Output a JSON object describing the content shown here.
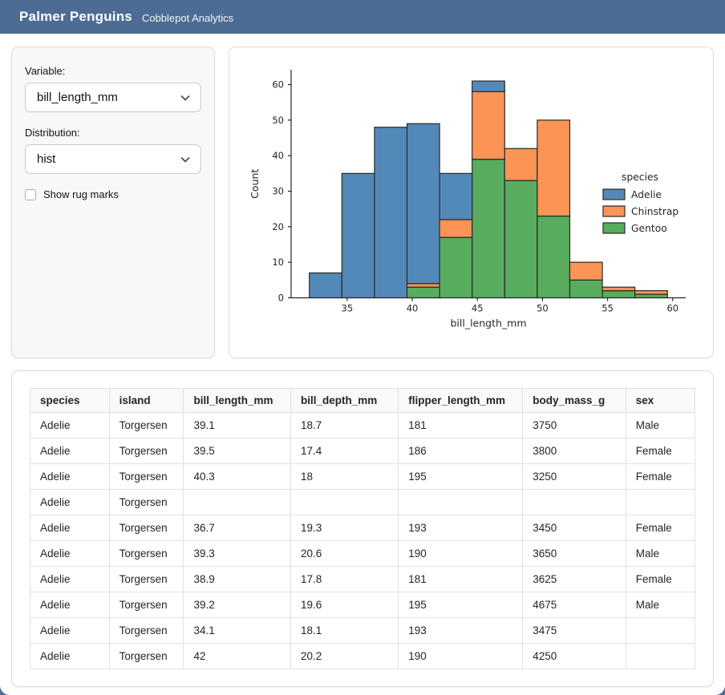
{
  "header": {
    "title": "Palmer Penguins",
    "subtitle": "Cobblepot Analytics",
    "bg_color": "#4d6c94"
  },
  "sidebar": {
    "variable_label": "Variable:",
    "variable_value": "bill_length_mm",
    "distribution_label": "Distribution:",
    "distribution_value": "hist",
    "rug_label": "Show rug marks",
    "rug_checked": false
  },
  "chart_data": {
    "type": "bar",
    "subtype": "stacked-histogram",
    "xlabel": "bill_length_mm",
    "ylabel": "Count",
    "bin_edges": [
      32.1,
      34.6,
      37.1,
      39.6,
      42.1,
      44.6,
      47.1,
      49.6,
      52.1,
      54.6,
      57.1,
      59.6
    ],
    "xlim": [
      30.7,
      61.0
    ],
    "ylim": [
      0,
      64
    ],
    "xticks": [
      35,
      40,
      45,
      50,
      55,
      60
    ],
    "yticks": [
      0,
      10,
      20,
      30,
      40,
      50,
      60
    ],
    "grid": false,
    "legend_title": "species",
    "legend_position": "right",
    "edge_color": "#2a2a2a",
    "stack_bottom_to_top": [
      "Gentoo",
      "Chinstrap",
      "Adelie"
    ],
    "series": [
      {
        "name": "Gentoo",
        "color": "#57ac5e",
        "values": [
          0,
          0,
          0,
          3,
          17,
          39,
          33,
          23,
          5,
          2,
          1
        ]
      },
      {
        "name": "Chinstrap",
        "color": "#fb9455",
        "values": [
          0,
          0,
          0,
          1,
          5,
          19,
          9,
          27,
          5,
          1,
          1
        ]
      },
      {
        "name": "Adelie",
        "color": "#5289b9",
        "values": [
          7,
          35,
          48,
          45,
          13,
          3,
          0,
          0,
          0,
          0,
          0
        ]
      }
    ],
    "bin_totals": [
      7,
      35,
      48,
      49,
      35,
      61,
      42,
      50,
      10,
      3,
      2
    ],
    "legend_order": [
      "Adelie",
      "Chinstrap",
      "Gentoo"
    ]
  },
  "table": {
    "columns": [
      "species",
      "island",
      "bill_length_mm",
      "bill_depth_mm",
      "flipper_length_mm",
      "body_mass_g",
      "sex"
    ],
    "rows": [
      [
        "Adelie",
        "Torgersen",
        "39.1",
        "18.7",
        "181",
        "3750",
        "Male"
      ],
      [
        "Adelie",
        "Torgersen",
        "39.5",
        "17.4",
        "186",
        "3800",
        "Female"
      ],
      [
        "Adelie",
        "Torgersen",
        "40.3",
        "18",
        "195",
        "3250",
        "Female"
      ],
      [
        "Adelie",
        "Torgersen",
        "",
        "",
        "",
        "",
        ""
      ],
      [
        "Adelie",
        "Torgersen",
        "36.7",
        "19.3",
        "193",
        "3450",
        "Female"
      ],
      [
        "Adelie",
        "Torgersen",
        "39.3",
        "20.6",
        "190",
        "3650",
        "Male"
      ],
      [
        "Adelie",
        "Torgersen",
        "38.9",
        "17.8",
        "181",
        "3625",
        "Female"
      ],
      [
        "Adelie",
        "Torgersen",
        "39.2",
        "19.6",
        "195",
        "4675",
        "Male"
      ],
      [
        "Adelie",
        "Torgersen",
        "34.1",
        "18.1",
        "193",
        "3475",
        ""
      ],
      [
        "Adelie",
        "Torgersen",
        "42",
        "20.2",
        "190",
        "4250",
        ""
      ]
    ]
  }
}
